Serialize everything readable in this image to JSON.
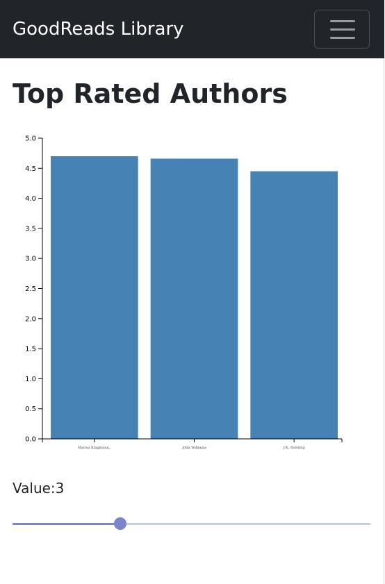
{
  "navbar": {
    "brand": "GoodReads Library",
    "menu_icon": "hamburger-menu-icon"
  },
  "page": {
    "title": "Top Rated Authors"
  },
  "chart_data": {
    "type": "bar",
    "categories": [
      "Marisa Klagmann..",
      "John Williams",
      "J.K. Rowling"
    ],
    "values": [
      4.7,
      4.66,
      4.45
    ],
    "ylim": [
      0,
      5
    ],
    "yticks": [
      "0.0",
      "0.5",
      "1.0",
      "1.5",
      "2.0",
      "2.5",
      "3.0",
      "3.5",
      "4.0",
      "4.5",
      "5.0"
    ],
    "bar_color": "#4682b4",
    "grid": false
  },
  "slider": {
    "label": "Value:3",
    "value": 3,
    "min": 0,
    "max": 10,
    "color": "#7986cb",
    "track_color": "#c5cae6"
  }
}
